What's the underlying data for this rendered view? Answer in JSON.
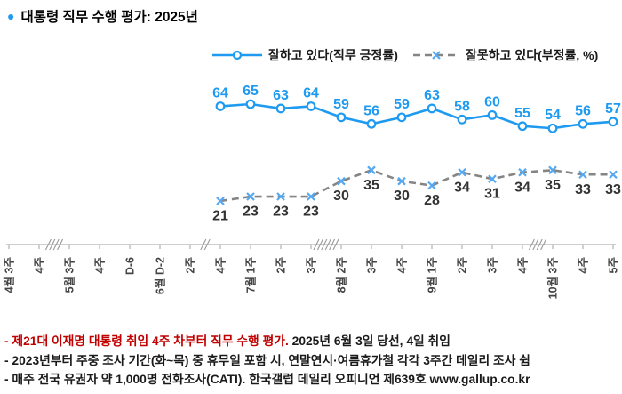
{
  "title": {
    "bullet": "●",
    "text": "대통령 직무 수행 평가: 2025년"
  },
  "colors": {
    "positive_line": "#1e9af0",
    "negative_line": "#858585",
    "negative_marker": "#55a8f2",
    "negative_label": "#333333",
    "axis": "#b0b0b0",
    "tick_label": "#444444",
    "footnote_red": "#c00000"
  },
  "chart_data": {
    "type": "line",
    "title": "대통령 직무 수행 평가: 2025년",
    "legend_position": "top",
    "grid": false,
    "y_axis_visible": false,
    "x_tick_labels": [
      "4월 3주",
      "4주",
      "5월 3주",
      "4주",
      "D-6",
      "6월 D-2",
      "2주",
      "4주",
      "7월 1주",
      "2주",
      "3주",
      "8월 2주",
      "3주",
      "4주",
      "9월 1주",
      "2주",
      "3주",
      "4주",
      "10월 3주",
      "4주",
      "5주"
    ],
    "axis_breaks": [
      {
        "after_index": 1,
        "slashes": 4
      },
      {
        "after_index": 6,
        "slashes": 2
      },
      {
        "after_index": 10,
        "slashes": 6
      },
      {
        "after_index": 17,
        "slashes": 4
      }
    ],
    "series": [
      {
        "name": "잘하고 있다(직무 긍정률)",
        "style": "solid",
        "marker": "circle",
        "label_side": "above",
        "start_tick_index": 7,
        "values": [
          64,
          65,
          63,
          64,
          59,
          56,
          59,
          63,
          58,
          60,
          55,
          54,
          56,
          57
        ]
      },
      {
        "name": "잘못하고 있다(부정률, %)",
        "style": "dashed",
        "marker": "x",
        "label_side": "below",
        "start_tick_index": 7,
        "values": [
          21,
          23,
          23,
          23,
          30,
          35,
          30,
          28,
          34,
          31,
          34,
          35,
          33,
          33
        ]
      }
    ]
  },
  "footnotes": {
    "line1_red": "- 제21대 이재명 대통령 취임 4주 차부터 직무 수행 평가.",
    "line1_black": " 2025년 6월 3일 당선, 4일 취임",
    "line2": "- 2023년부터 주중 조사 기간(화~목) 중 휴무일 포함 시, 연말연시·여름휴가철 각각 3주간 데일리 조사 쉼",
    "line3": "- 매주 전국 유권자 약 1,000명 전화조사(CATI). 한국갤럽 데일리 오피니언 제639호 www.gallup.co.kr"
  }
}
